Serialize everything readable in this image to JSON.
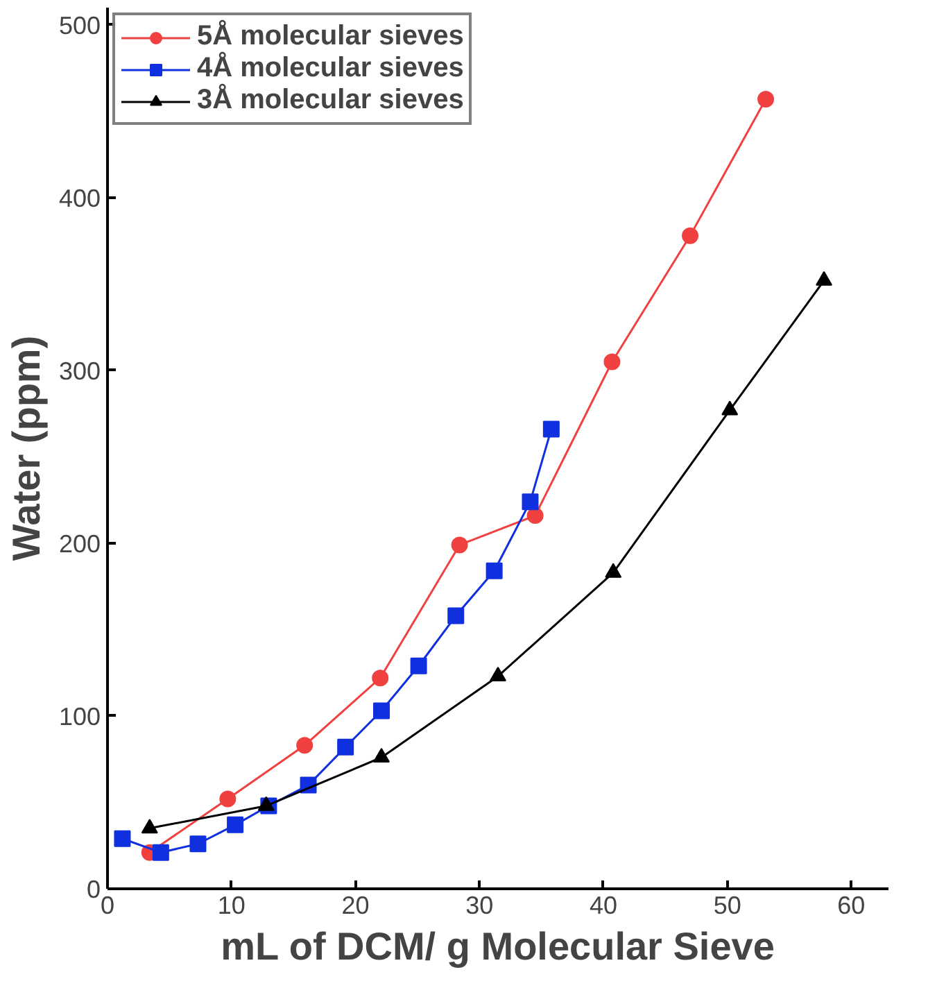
{
  "chart_data": {
    "type": "line",
    "xlabel": "mL of DCM/ g Molecular Sieve",
    "ylabel": "Water (ppm)",
    "xlim": [
      0,
      63
    ],
    "ylim": [
      0,
      510
    ],
    "xticks": [
      0,
      10,
      20,
      30,
      40,
      50,
      60
    ],
    "yticks": [
      0,
      100,
      200,
      300,
      400,
      500
    ],
    "grid": false,
    "legend": "top left",
    "line_style": "solid",
    "series": [
      {
        "name": "5Å molecular sieves",
        "color": "#f04040",
        "marker": "circle",
        "x": [
          3.4,
          9.7,
          15.9,
          22,
          28.4,
          34.5,
          40.7,
          47,
          53.1
        ],
        "values": [
          21,
          52,
          83,
          122,
          199,
          216,
          305,
          378,
          457
        ]
      },
      {
        "name": "4Å molecular sieves",
        "color": "#1030e0",
        "marker": "square",
        "x": [
          1.2,
          4.3,
          7.3,
          10.3,
          13,
          16.2,
          19.2,
          22.1,
          25.1,
          28.1,
          31.2,
          34.1,
          35.8
        ],
        "values": [
          29,
          21,
          26,
          37,
          48,
          60,
          82,
          103,
          129,
          158,
          184,
          224,
          266
        ]
      },
      {
        "name": "3Å molecular sieves",
        "color": "#000000",
        "marker": "triangle",
        "x": [
          3.4,
          12.8,
          22.1,
          31.5,
          40.8,
          50.2,
          57.8
        ],
        "values": [
          35,
          48,
          76,
          123,
          183,
          277,
          352
        ]
      }
    ]
  }
}
